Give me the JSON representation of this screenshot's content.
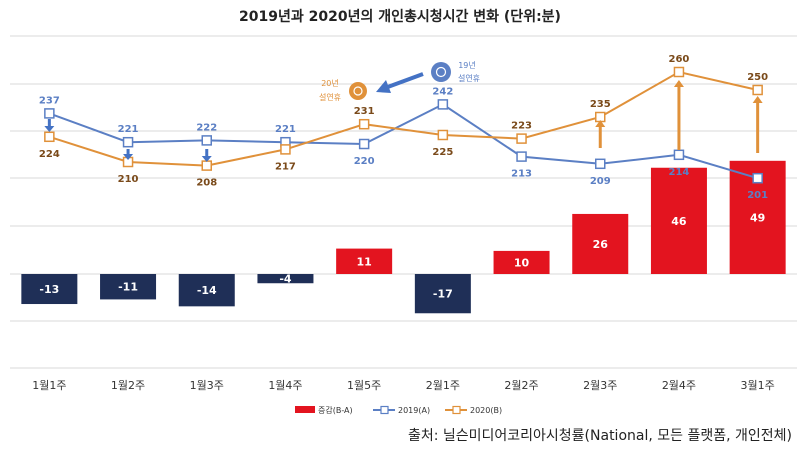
{
  "title": "2019년과 2020년의 개인총시청시간 변화 (단위:분)",
  "source": "출처: 닐슨미디어코리아시청률(National, 모든 플랫폼, 개인전체)",
  "annotation": {
    "label_2020": [
      "20년",
      "설연휴"
    ],
    "label_2019": [
      "19년",
      "설연휴"
    ]
  },
  "colors": {
    "bar_positive": "#e3141f",
    "bar_negative": "#1f2f57",
    "line_2019": "#5b7fc4",
    "line_2020": "#e0913a",
    "grid": "#d9d9d9",
    "arrow_2019": "#4472c4",
    "arrow_2020": "#e0913a"
  },
  "chart_data": {
    "type": "bar",
    "categories": [
      "1월1주",
      "1월2주",
      "1월3주",
      "1월4주",
      "1월5주",
      "2월1주",
      "2월2주",
      "2월3주",
      "2월4주",
      "3월1주"
    ],
    "series": [
      {
        "name": "증감(B-A)",
        "type": "bar",
        "values": [
          -13,
          -11,
          -14,
          -4,
          11,
          -17,
          10,
          26,
          46,
          49
        ]
      },
      {
        "name": "2019(A)",
        "type": "line",
        "values": [
          237,
          221,
          222,
          221,
          220,
          242,
          213,
          209,
          214,
          201
        ]
      },
      {
        "name": "2020(B)",
        "type": "line",
        "values": [
          224,
          210,
          208,
          217,
          231,
          225,
          223,
          235,
          260,
          250
        ]
      }
    ],
    "legend_position": "bottom",
    "grid": true
  }
}
